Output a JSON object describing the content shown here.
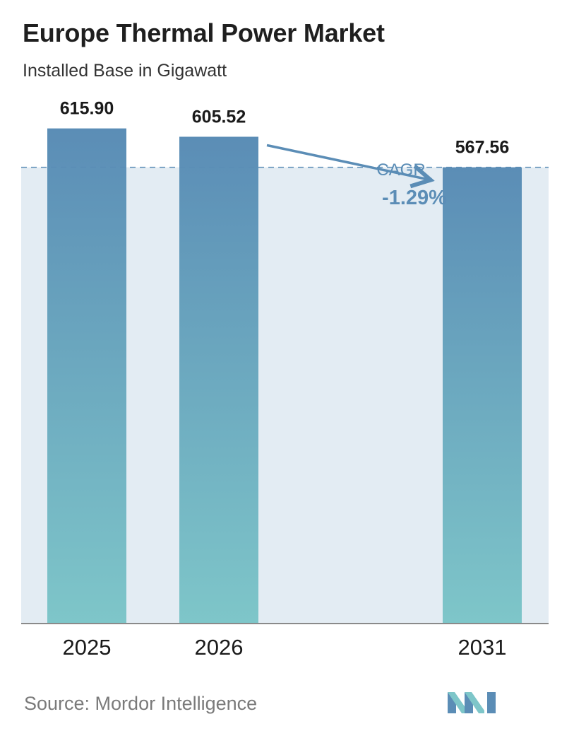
{
  "header": {
    "title": "Europe Thermal Power Market",
    "subtitle": "Installed Base in Gigawatt"
  },
  "footer": {
    "source": "Source: Mordor Intelligence",
    "logo_icon": "mordor-intelligence-logo-icon"
  },
  "colors": {
    "bar_top": "#5b8db6",
    "bar_bottom": "#7ec6c9",
    "band": "#e3ecf3",
    "cagr": "#5b8db6",
    "axis": "#8a8a8a"
  },
  "chart_data": {
    "type": "bar",
    "categories": [
      "2025",
      "2026",
      "2031"
    ],
    "values": [
      615.9,
      605.52,
      567.56
    ],
    "value_labels": [
      "615.90",
      "605.52",
      "567.56"
    ],
    "ylim": [
      0,
      700
    ],
    "grid": false,
    "reference_line": 567.56,
    "annotation": {
      "label": "CAGR",
      "value": "-1.29%"
    }
  }
}
